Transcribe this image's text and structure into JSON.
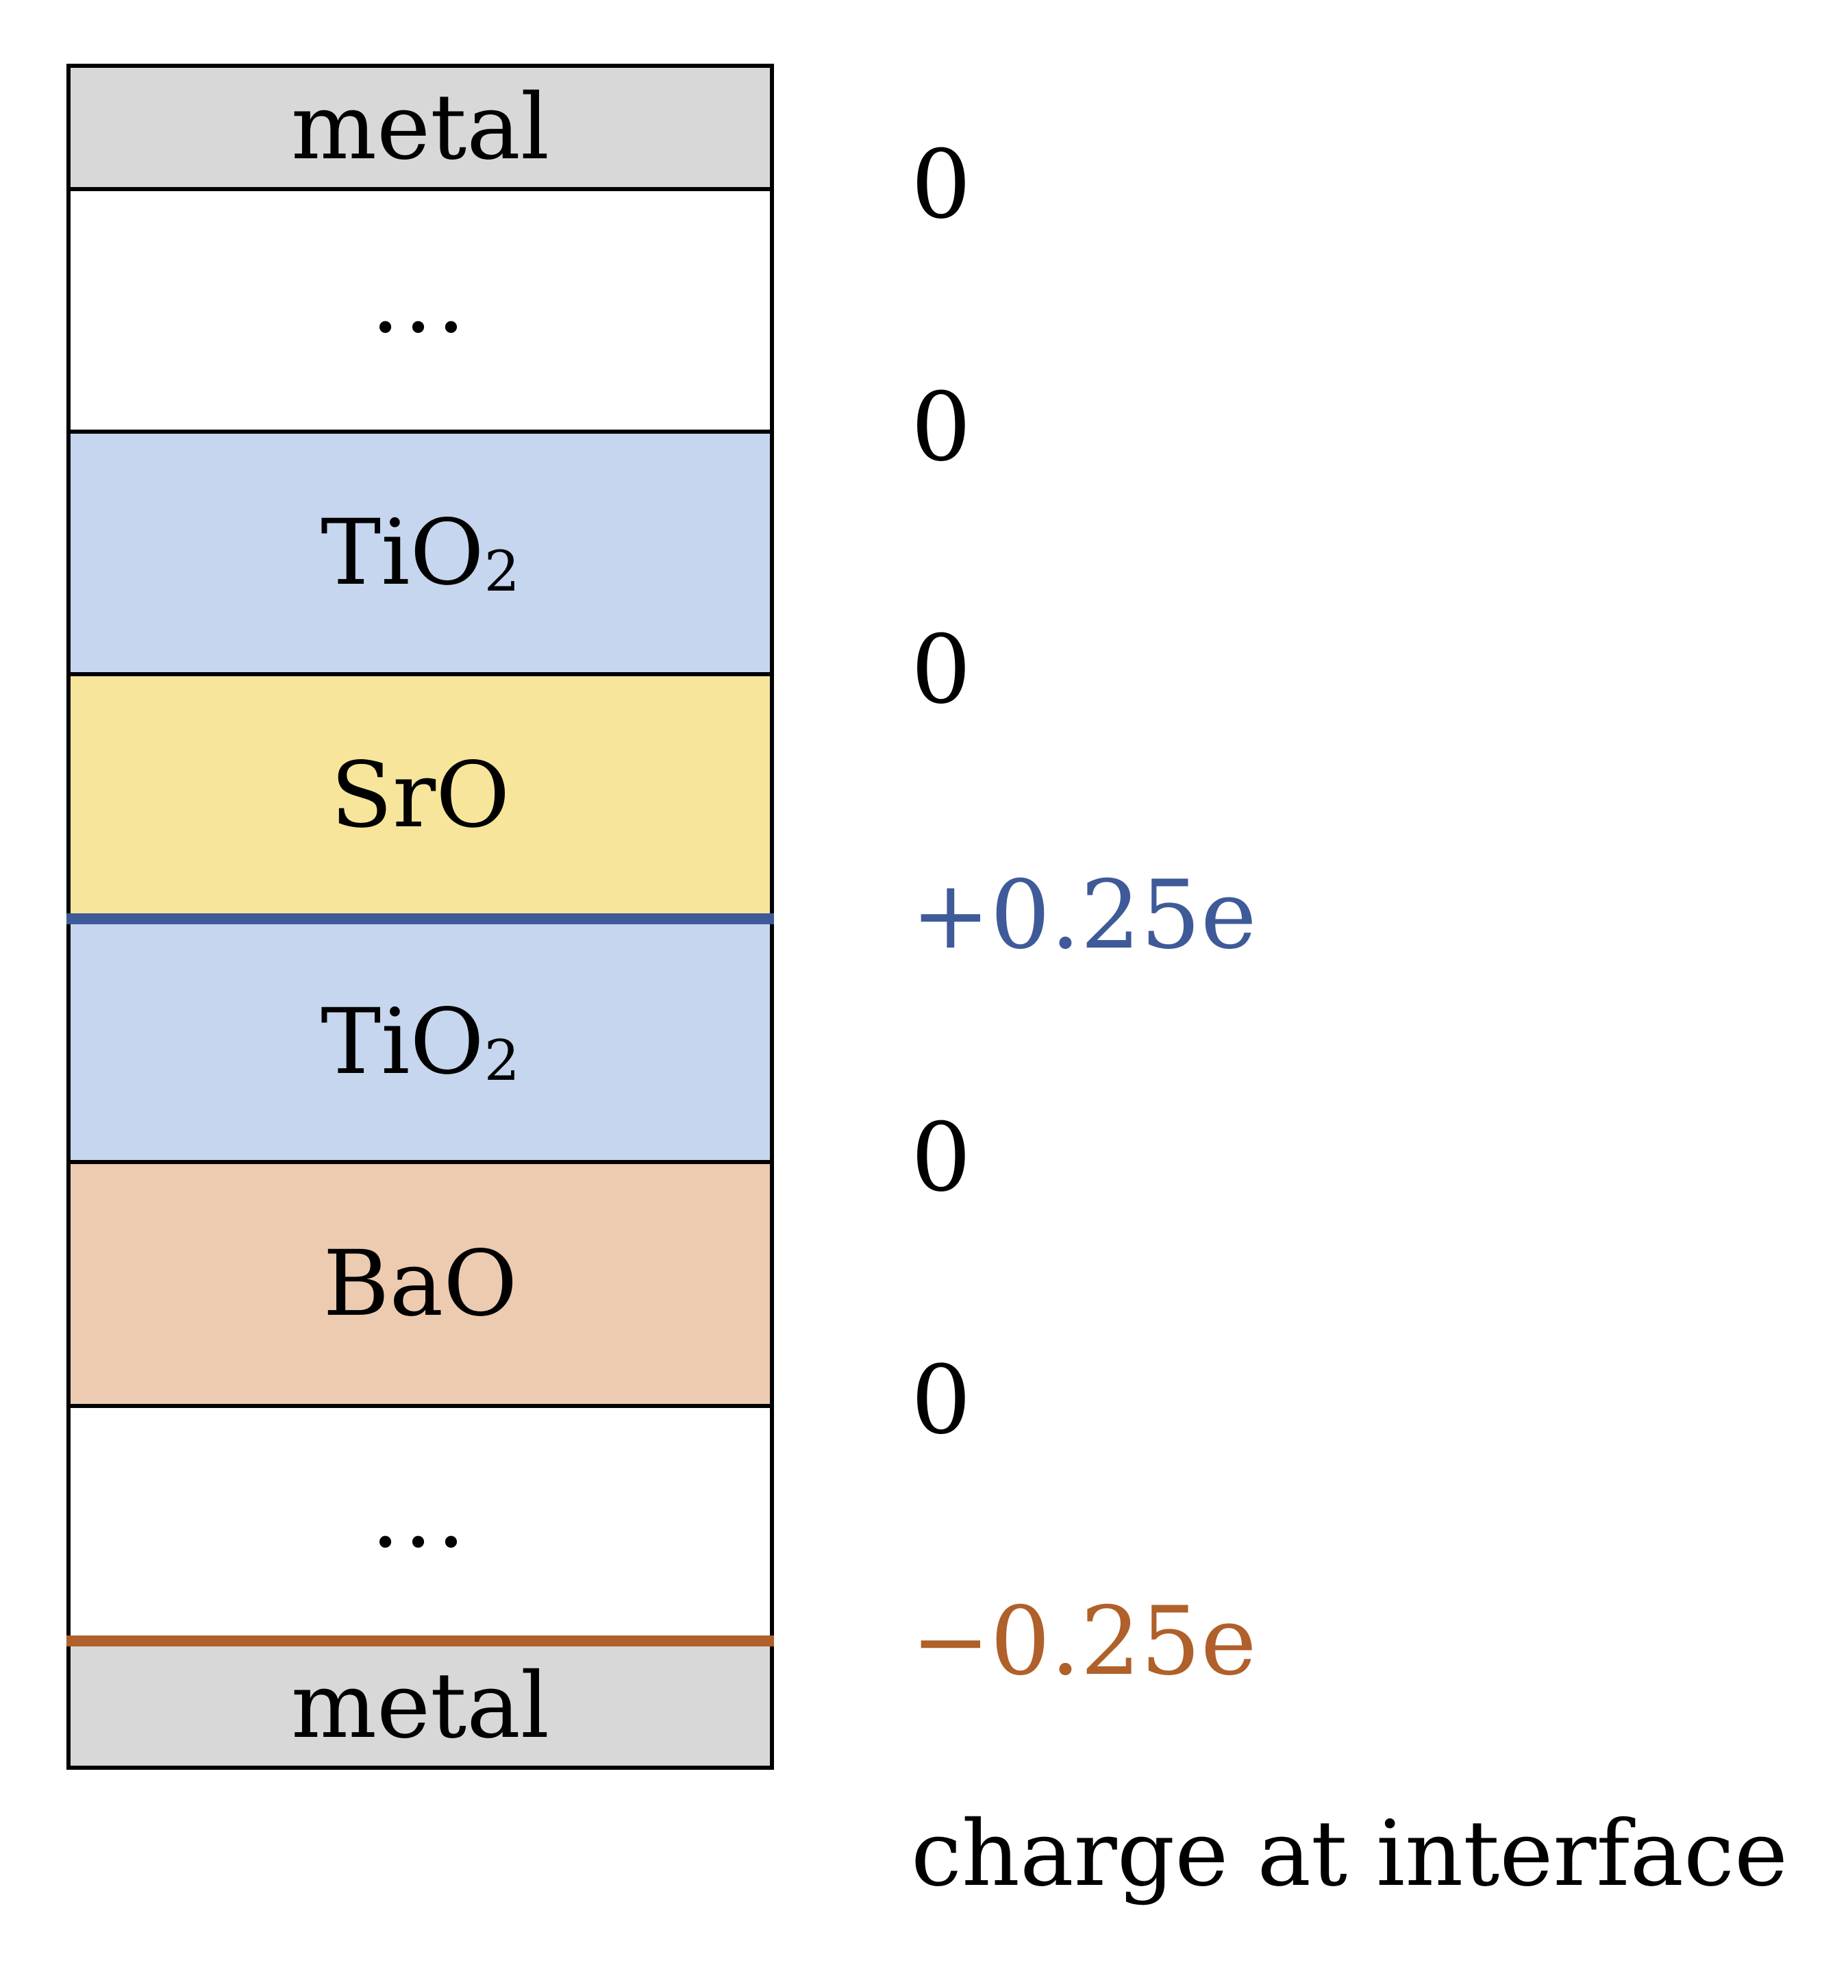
{
  "layers": [
    {
      "label": "metal",
      "sub": "",
      "color": "#d8d8d8"
    },
    {
      "label": "...",
      "sub": "",
      "color": "#ffffff"
    },
    {
      "label": "TiO",
      "sub": "2",
      "color": "#c5d6ee"
    },
    {
      "label": "SrO",
      "sub": "",
      "color": "#f7e59c"
    },
    {
      "label": "TiO",
      "sub": "2",
      "color": "#c5d6ee"
    },
    {
      "label": "BaO",
      "sub": "",
      "color": "#edcbb0"
    },
    {
      "label": "...",
      "sub": "",
      "color": "#ffffff"
    },
    {
      "label": "metal",
      "sub": "",
      "color": "#d8d8d8"
    }
  ],
  "charges": [
    {
      "value": "0",
      "color": "#000000"
    },
    {
      "value": "0",
      "color": "#000000"
    },
    {
      "value": "0",
      "color": "#000000"
    },
    {
      "value": "+0.25e",
      "color": "#3f5a98"
    },
    {
      "value": "0",
      "color": "#000000"
    },
    {
      "value": "0",
      "color": "#000000"
    },
    {
      "value": "−0.25e",
      "color": "#b0602a"
    }
  ],
  "interface_colors": {
    "positive": "#3f5a98",
    "negative": "#b0602a"
  },
  "caption": "charge at interface"
}
